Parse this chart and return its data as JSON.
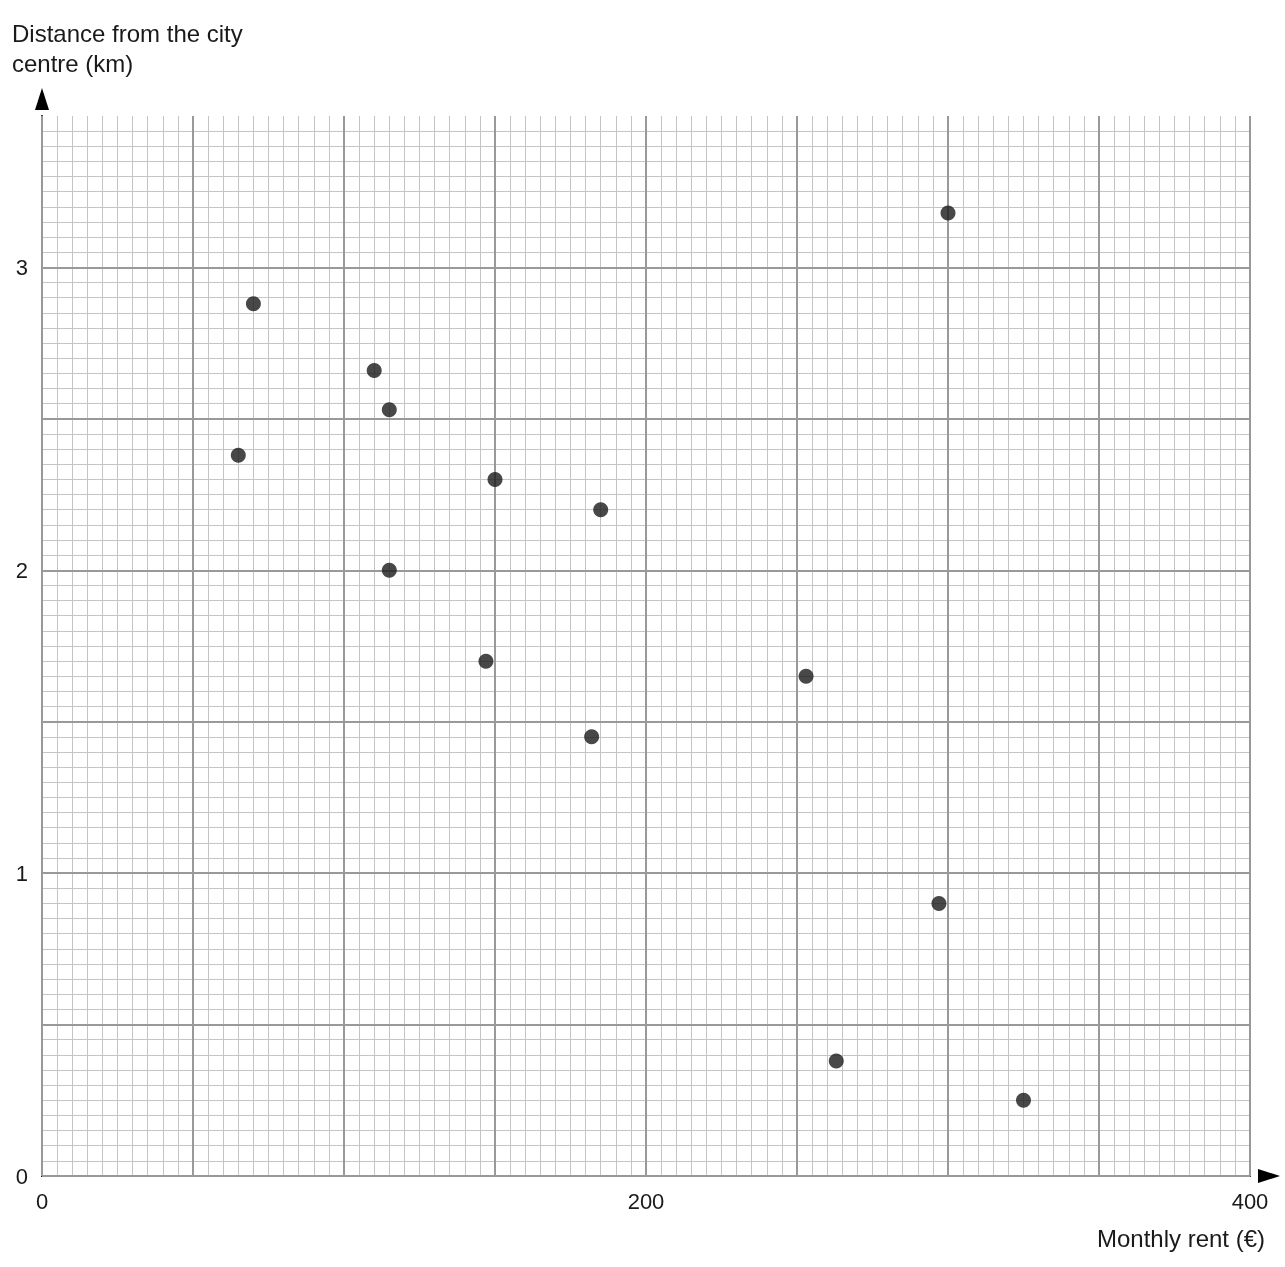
{
  "chart_data": {
    "type": "scatter",
    "xlabel": "Monthly rent (€)",
    "ylabel": "Distance from the city\ncentre (km)",
    "x": [
      70,
      65,
      110,
      115,
      115,
      150,
      147,
      185,
      182,
      253,
      263,
      297,
      300,
      325
    ],
    "values": [
      2.88,
      2.38,
      2.66,
      2.53,
      2.0,
      2.3,
      1.7,
      2.2,
      1.45,
      1.65,
      0.38,
      0.9,
      3.18,
      0.25
    ],
    "color": "#1a1a1a",
    "marker": "circle",
    "grid": true,
    "xlim": [
      0,
      400
    ],
    "xticks": [
      0,
      {
        "value": 50,
        "label": null
      },
      {
        "value": 100,
        "label": null
      },
      {
        "value": 150,
        "label": null
      },
      200,
      {
        "value": 250,
        "label": null
      },
      {
        "value": 300,
        "label": null
      },
      {
        "value": 350,
        "label": null
      },
      400
    ],
    "ylim": [
      0,
      3.5
    ],
    "yticks": [
      0,
      {
        "value": 0.5,
        "label": null
      },
      1,
      {
        "value": 1.5,
        "label": null
      },
      2,
      {
        "value": 2.5,
        "label": null
      },
      3
    ]
  }
}
